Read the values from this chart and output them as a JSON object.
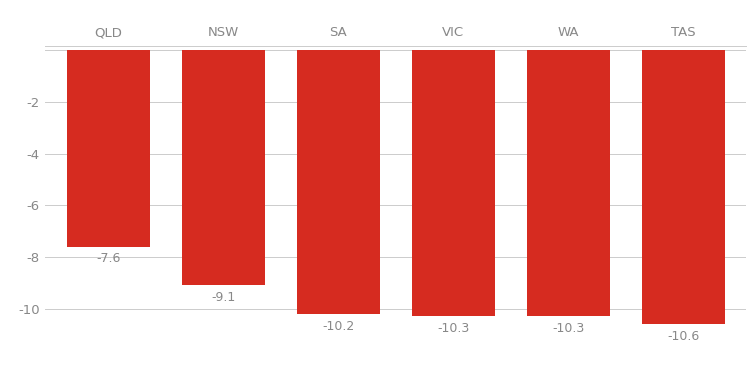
{
  "categories": [
    "QLD",
    "NSW",
    "SA",
    "VIC",
    "WA",
    "TAS"
  ],
  "values": [
    -7.6,
    -9.1,
    -10.2,
    -10.3,
    -10.3,
    -10.6
  ],
  "bar_color": "#d62b20",
  "background_color": "#ffffff",
  "ylim": [
    -11.2,
    0.15
  ],
  "yticks": [
    -10,
    -8,
    -6,
    -4,
    -2,
    0
  ],
  "label_fontsize": 9.5,
  "tick_fontsize": 9.5,
  "value_label_fontsize": 9,
  "bar_width": 0.72,
  "grid_color": "#cccccc",
  "text_color": "#888888",
  "value_color": "#888888"
}
